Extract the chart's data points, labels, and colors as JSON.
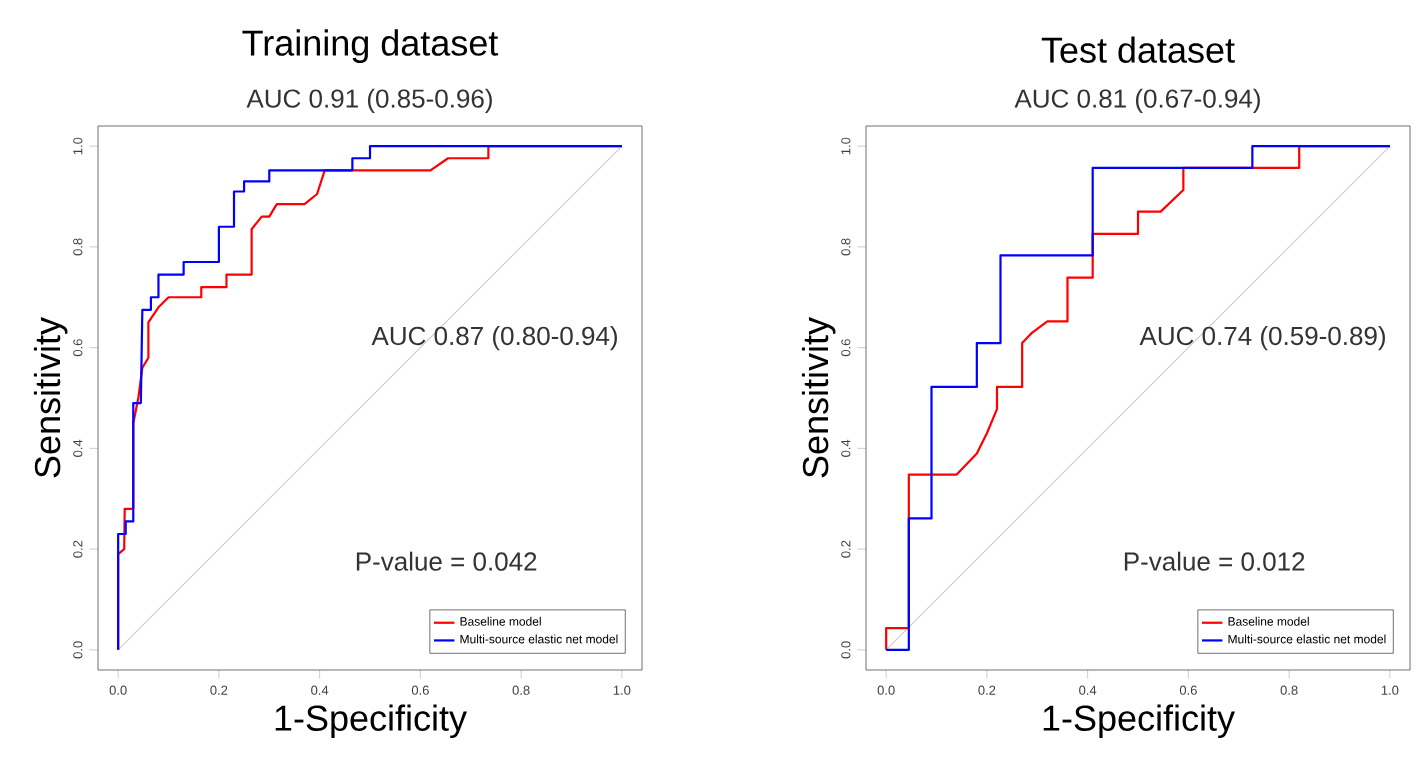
{
  "chart_data": [
    {
      "type": "line",
      "title": "Training dataset",
      "xlabel": "1-Specificity",
      "ylabel": "Sensitivity",
      "annotations": [
        "AUC 0.91 (0.85-0.96)",
        "AUC 0.87 (0.80-0.94)",
        "P-value = 0.042"
      ],
      "xlim": [
        -0.04,
        1.04
      ],
      "ylim": [
        -0.04,
        1.04
      ],
      "xticks": [
        {
          "value": 0,
          "label": "0.0"
        },
        {
          "value": 0.2,
          "label": "0.2"
        },
        {
          "value": 0.4,
          "label": "0.4"
        },
        {
          "value": 0.6,
          "label": "0.6"
        },
        {
          "value": 0.8,
          "label": "0.8"
        },
        {
          "value": 1,
          "label": "1.0"
        }
      ],
      "yticks": [
        {
          "value": 0,
          "label": "0.0"
        },
        {
          "value": 0.2,
          "label": "0.2"
        },
        {
          "value": 0.4,
          "label": "0.4"
        },
        {
          "value": 0.6,
          "label": "0.6"
        },
        {
          "value": 0.8,
          "label": "0.8"
        },
        {
          "value": 1,
          "label": "1.0"
        }
      ],
      "legend": "bottom right",
      "marker": "none",
      "series": [
        {
          "color": "#c8c8c8",
          "x": [
            0,
            1
          ],
          "values": [
            0,
            1
          ]
        },
        {
          "name": "Baseline model",
          "color": "#ff0000",
          "x": [
            0,
            0,
            0.012,
            0.013,
            0.03,
            0.03,
            0.04,
            0.048,
            0.06,
            0.06,
            0.08,
            0.1,
            0.165,
            0.165,
            0.215,
            0.215,
            0.265,
            0.265,
            0.285,
            0.3,
            0.315,
            0.37,
            0.395,
            0.41,
            0.62,
            0.655,
            0.735,
            0.735,
            1
          ],
          "values": [
            0,
            0.19,
            0.2,
            0.28,
            0.28,
            0.45,
            0.5,
            0.56,
            0.58,
            0.65,
            0.68,
            0.7,
            0.7,
            0.72,
            0.72,
            0.745,
            0.745,
            0.835,
            0.86,
            0.86,
            0.885,
            0.885,
            0.905,
            0.952,
            0.952,
            0.976,
            0.976,
            1,
            1
          ]
        },
        {
          "name": "Multi-source elastic net model",
          "color": "#0000ff",
          "x": [
            0,
            0,
            0.015,
            0.015,
            0.03,
            0.03,
            0.045,
            0.048,
            0.065,
            0.065,
            0.08,
            0.08,
            0.13,
            0.13,
            0.2,
            0.2,
            0.23,
            0.23,
            0.25,
            0.25,
            0.3,
            0.3,
            0.465,
            0.465,
            0.5,
            0.5,
            1
          ],
          "values": [
            0,
            0.23,
            0.23,
            0.255,
            0.255,
            0.49,
            0.49,
            0.675,
            0.675,
            0.7,
            0.7,
            0.745,
            0.745,
            0.77,
            0.77,
            0.84,
            0.84,
            0.91,
            0.91,
            0.93,
            0.93,
            0.952,
            0.952,
            0.976,
            0.976,
            1,
            1
          ]
        }
      ]
    },
    {
      "type": "line",
      "title": "Test dataset",
      "xlabel": "1-Specificity",
      "ylabel": "Sensitivity",
      "annotations": [
        "AUC 0.81 (0.67-0.94)",
        "AUC 0.74 (0.59-0.89)",
        "P-value = 0.012"
      ],
      "xlim": [
        -0.04,
        1.04
      ],
      "ylim": [
        -0.04,
        1.04
      ],
      "xticks": [
        {
          "value": 0,
          "label": "0.0"
        },
        {
          "value": 0.2,
          "label": "0.2"
        },
        {
          "value": 0.4,
          "label": "0.4"
        },
        {
          "value": 0.6,
          "label": "0.6"
        },
        {
          "value": 0.8,
          "label": "0.8"
        },
        {
          "value": 1,
          "label": "1.0"
        }
      ],
      "yticks": [
        {
          "value": 0,
          "label": "0.0"
        },
        {
          "value": 0.2,
          "label": "0.2"
        },
        {
          "value": 0.4,
          "label": "0.4"
        },
        {
          "value": 0.6,
          "label": "0.6"
        },
        {
          "value": 0.8,
          "label": "0.8"
        },
        {
          "value": 1,
          "label": "1.0"
        }
      ],
      "legend": "bottom right",
      "marker": "none",
      "series": [
        {
          "color": "#c8c8c8",
          "x": [
            0,
            1
          ],
          "values": [
            0,
            1
          ]
        },
        {
          "name": "Baseline model",
          "color": "#ff0000",
          "x": [
            0,
            0,
            0.045,
            0.045,
            0.14,
            0.18,
            0.2,
            0.22,
            0.22,
            0.27,
            0.27,
            0.29,
            0.32,
            0.36,
            0.36,
            0.41,
            0.41,
            0.5,
            0.5,
            0.545,
            0.59,
            0.59,
            0.82,
            0.82,
            1
          ],
          "values": [
            0,
            0.043,
            0.043,
            0.348,
            0.348,
            0.39,
            0.43,
            0.478,
            0.522,
            0.522,
            0.609,
            0.63,
            0.652,
            0.652,
            0.739,
            0.739,
            0.826,
            0.826,
            0.87,
            0.87,
            0.913,
            0.957,
            0.957,
            1,
            1
          ]
        },
        {
          "name": "Multi-source elastic net model",
          "color": "#0000ff",
          "x": [
            0,
            0.045,
            0.045,
            0.09,
            0.09,
            0.18,
            0.18,
            0.227,
            0.227,
            0.41,
            0.41,
            0.727,
            0.727,
            1
          ],
          "values": [
            0,
            0,
            0.261,
            0.261,
            0.522,
            0.522,
            0.609,
            0.609,
            0.783,
            0.783,
            0.957,
            0.957,
            1,
            1
          ]
        }
      ]
    }
  ]
}
